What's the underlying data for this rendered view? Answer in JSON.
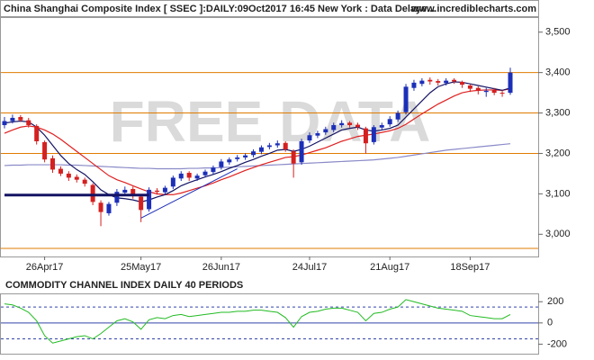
{
  "chart_data": [
    {
      "type": "candlestick",
      "title": "China Shanghai Composite Index [ SSEC ]:DAILY:09Oct2017 16:45 New York : Data Delaye...",
      "website": "www.incrediblecharts.com",
      "watermark": "FREE DATA",
      "categories": [
        null,
        null,
        null,
        null,
        null,
        "26Apr17",
        null,
        null,
        null,
        null,
        null,
        null,
        null,
        null,
        null,
        null,
        null,
        "25May17",
        null,
        null,
        null,
        null,
        null,
        null,
        null,
        null,
        null,
        "26Jun17",
        null,
        null,
        null,
        null,
        null,
        null,
        null,
        null,
        null,
        null,
        "24Jul17",
        null,
        null,
        null,
        null,
        null,
        null,
        null,
        null,
        null,
        "21Aug17",
        null,
        null,
        null,
        null,
        null,
        null,
        null,
        null,
        null,
        "18Sep17",
        null,
        null,
        null,
        null,
        null
      ],
      "open": [
        3270,
        3280,
        3290,
        3282,
        3268,
        3228,
        3188,
        3162,
        3150,
        3142,
        3135,
        3122,
        3078,
        3052,
        3078,
        3103,
        3112,
        3093,
        3062,
        3108,
        3104,
        3118,
        3138,
        3152,
        3138,
        3146,
        3154,
        3166,
        3178,
        3186,
        3190,
        3196,
        3204,
        3216,
        3220,
        3226,
        3205,
        3178,
        3232,
        3244,
        3252,
        3258,
        3270,
        3276,
        3271,
        3262,
        3228,
        3264,
        3272,
        3284,
        3302,
        3362,
        3372,
        3382,
        3379,
        3374,
        3382,
        3377,
        3368,
        3362,
        3352,
        3357,
        3350,
        3350
      ],
      "high": [
        3290,
        3296,
        3295,
        3288,
        3272,
        3232,
        3195,
        3168,
        3156,
        3148,
        3140,
        3126,
        3084,
        3080,
        3112,
        3118,
        3118,
        3098,
        3116,
        3114,
        3120,
        3145,
        3156,
        3156,
        3150,
        3160,
        3170,
        3186,
        3190,
        3196,
        3200,
        3210,
        3220,
        3226,
        3232,
        3230,
        3210,
        3236,
        3252,
        3256,
        3266,
        3276,
        3282,
        3280,
        3276,
        3266,
        3270,
        3276,
        3292,
        3306,
        3372,
        3382,
        3386,
        3388,
        3384,
        3386,
        3386,
        3380,
        3372,
        3366,
        3362,
        3362,
        3356,
        3412
      ],
      "low": [
        3262,
        3274,
        3278,
        3264,
        3222,
        3178,
        3152,
        3144,
        3132,
        3128,
        3118,
        3072,
        3020,
        3046,
        3070,
        3098,
        3088,
        3030,
        3056,
        3098,
        3098,
        3112,
        3132,
        3132,
        3132,
        3140,
        3148,
        3160,
        3172,
        3180,
        3184,
        3190,
        3198,
        3210,
        3214,
        3204,
        3140,
        3172,
        3226,
        3238,
        3246,
        3252,
        3264,
        3264,
        3258,
        3200,
        3222,
        3258,
        3266,
        3278,
        3296,
        3355,
        3366,
        3370,
        3368,
        3368,
        3372,
        3362,
        3352,
        3346,
        3340,
        3344,
        3340,
        3345
      ],
      "close": [
        3280,
        3288,
        3282,
        3270,
        3230,
        3185,
        3160,
        3150,
        3140,
        3135,
        3125,
        3080,
        3055,
        3075,
        3105,
        3110,
        3095,
        3060,
        3110,
        3105,
        3115,
        3140,
        3150,
        3140,
        3145,
        3155,
        3165,
        3180,
        3185,
        3190,
        3195,
        3205,
        3215,
        3220,
        3225,
        3210,
        3175,
        3230,
        3245,
        3250,
        3260,
        3270,
        3275,
        3270,
        3265,
        3225,
        3265,
        3270,
        3285,
        3300,
        3365,
        3375,
        3380,
        3378,
        3375,
        3380,
        3378,
        3370,
        3360,
        3355,
        3355,
        3350,
        3348,
        3400
      ],
      "up_color": "#1c2fb8",
      "down_color": "#d42020",
      "series": [
        {
          "color": "#8a8ac8",
          "values": [
            3170,
            3171,
            3171,
            3172,
            3172,
            3172,
            3172,
            3172,
            3171,
            3171,
            3170,
            3169,
            3168,
            3167,
            3166,
            3165,
            3164,
            3163,
            3163,
            3162,
            3162,
            3162,
            3162,
            3163,
            3163,
            3164,
            3164,
            3165,
            3166,
            3167,
            3168,
            3169,
            3170,
            3171,
            3172,
            3173,
            3174,
            3175,
            3176,
            3177,
            3178,
            3179,
            3180,
            3181,
            3182,
            3183,
            3184,
            3186,
            3188,
            3190,
            3193,
            3196,
            3199,
            3202,
            3205,
            3208,
            3210,
            3212,
            3214,
            3216,
            3218,
            3220,
            3222,
            3224
          ]
        },
        {
          "color": "#e02020",
          "values": [
            3250,
            3258,
            3265,
            3268,
            3265,
            3258,
            3248,
            3235,
            3220,
            3205,
            3190,
            3175,
            3160,
            3145,
            3135,
            3128,
            3120,
            3112,
            3105,
            3100,
            3098,
            3098,
            3102,
            3108,
            3114,
            3120,
            3127,
            3135,
            3142,
            3150,
            3158,
            3165,
            3172,
            3178,
            3184,
            3190,
            3192,
            3196,
            3202,
            3208,
            3214,
            3222,
            3230,
            3236,
            3242,
            3245,
            3248,
            3252,
            3256,
            3262,
            3272,
            3285,
            3298,
            3310,
            3322,
            3332,
            3342,
            3350,
            3354,
            3356,
            3357,
            3357,
            3356,
            3360
          ]
        },
        {
          "color": "#141464",
          "values": [
            3275,
            3278,
            3280,
            3278,
            3265,
            3245,
            3220,
            3195,
            3175,
            3160,
            3148,
            3130,
            3110,
            3098,
            3090,
            3088,
            3085,
            3080,
            3085,
            3092,
            3098,
            3108,
            3120,
            3128,
            3135,
            3142,
            3148,
            3155,
            3163,
            3170,
            3178,
            3185,
            3193,
            3200,
            3208,
            3210,
            3205,
            3210,
            3218,
            3228,
            3238,
            3248,
            3258,
            3262,
            3265,
            3258,
            3255,
            3258,
            3262,
            3270,
            3290,
            3310,
            3330,
            3350,
            3365,
            3372,
            3377,
            3376,
            3372,
            3368,
            3364,
            3360,
            3356,
            3362
          ]
        }
      ],
      "hlines": [
        3400,
        3300,
        3200,
        2965
      ],
      "hline_color": "#e07b00",
      "lines": [
        {
          "x": [
            0,
            18
          ],
          "y": [
            3097,
            3097
          ],
          "color": "#141464",
          "width": 3
        },
        {
          "x": [
            17,
            29
          ],
          "y": [
            3040,
            3162
          ],
          "color": "#1c2fb8",
          "width": 1
        }
      ],
      "ylim": [
        2945,
        3535
      ],
      "yticks": [
        {
          "value": 3000,
          "label": "3,000"
        },
        {
          "value": 3100,
          "label": "3,100"
        },
        {
          "value": 3200,
          "label": "3,200"
        },
        {
          "value": 3300,
          "label": "3,300"
        },
        {
          "value": 3400,
          "label": "3,400"
        },
        {
          "value": 3500,
          "label": "3,500"
        }
      ]
    },
    {
      "type": "line",
      "title": "COMMODITY CHANNEL INDEX DAILY 40 PERIODS",
      "color": "#22bb22",
      "values": [
        180,
        170,
        140,
        100,
        20,
        -120,
        -190,
        -170,
        -150,
        -130,
        -120,
        -150,
        -100,
        -40,
        20,
        40,
        10,
        -60,
        30,
        50,
        40,
        70,
        80,
        60,
        70,
        80,
        90,
        100,
        100,
        110,
        110,
        120,
        120,
        110,
        100,
        50,
        -40,
        60,
        100,
        110,
        130,
        140,
        140,
        120,
        100,
        20,
        90,
        100,
        130,
        150,
        220,
        200,
        180,
        160,
        140,
        130,
        120,
        110,
        70,
        60,
        50,
        40,
        40,
        80
      ],
      "ref_lines": [
        150,
        -150
      ],
      "ylim": [
        -290,
        270
      ],
      "yticks": [
        200,
        0,
        -200
      ]
    }
  ]
}
